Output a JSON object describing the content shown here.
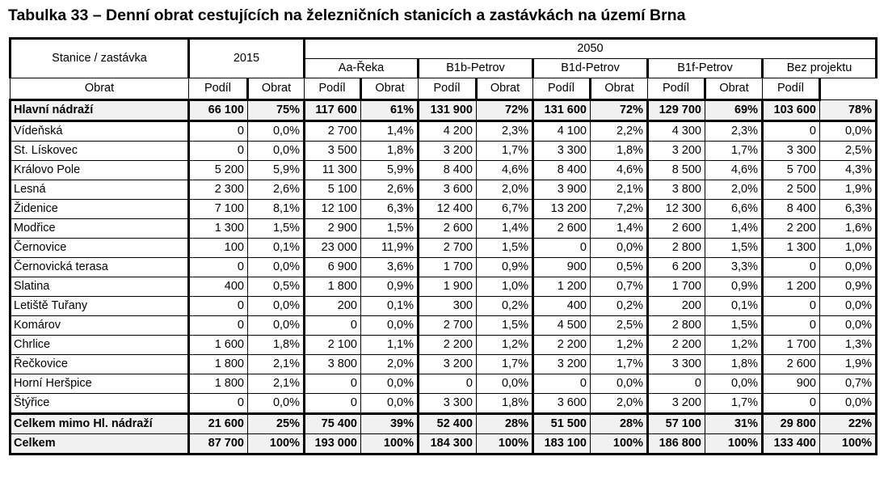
{
  "title": "Tabulka 33 – Denní obrat cestujících na železničních stanicích a zastávkách na území Brna",
  "header": {
    "station_col": "Stanice / zastávka",
    "year_2015": "2015",
    "year_2050": "2050",
    "variants": [
      "Aa-Řeka",
      "B1b-Petrov",
      "B1d-Petrov",
      "B1f-Petrov",
      "Bez projektu"
    ],
    "obrat": "Obrat",
    "podil": "Podíl"
  },
  "rows": [
    {
      "name": "Hlavní nádraží",
      "bold": true,
      "values": [
        "66 100",
        "75%",
        "117 600",
        "61%",
        "131 900",
        "72%",
        "131 600",
        "72%",
        "129 700",
        "69%",
        "103 600",
        "78%"
      ]
    },
    {
      "name": "Vídeňská",
      "values": [
        "0",
        "0,0%",
        "2 700",
        "1,4%",
        "4 200",
        "2,3%",
        "4 100",
        "2,2%",
        "4 300",
        "2,3%",
        "0",
        "0,0%"
      ]
    },
    {
      "name": "St. Lískovec",
      "values": [
        "0",
        "0,0%",
        "3 500",
        "1,8%",
        "3 200",
        "1,7%",
        "3 300",
        "1,8%",
        "3 200",
        "1,7%",
        "3 300",
        "2,5%"
      ]
    },
    {
      "name": "Královo Pole",
      "values": [
        "5 200",
        "5,9%",
        "11 300",
        "5,9%",
        "8 400",
        "4,6%",
        "8 400",
        "4,6%",
        "8 500",
        "4,6%",
        "5 700",
        "4,3%"
      ]
    },
    {
      "name": "Lesná",
      "values": [
        "2 300",
        "2,6%",
        "5 100",
        "2,6%",
        "3 600",
        "2,0%",
        "3 900",
        "2,1%",
        "3 800",
        "2,0%",
        "2 500",
        "1,9%"
      ]
    },
    {
      "name": "Židenice",
      "values": [
        "7 100",
        "8,1%",
        "12 100",
        "6,3%",
        "12 400",
        "6,7%",
        "13 200",
        "7,2%",
        "12 300",
        "6,6%",
        "8 400",
        "6,3%"
      ]
    },
    {
      "name": "Modřice",
      "values": [
        "1 300",
        "1,5%",
        "2 900",
        "1,5%",
        "2 600",
        "1,4%",
        "2 600",
        "1,4%",
        "2 600",
        "1,4%",
        "2 200",
        "1,6%"
      ]
    },
    {
      "name": "Černovice",
      "values": [
        "100",
        "0,1%",
        "23 000",
        "11,9%",
        "2 700",
        "1,5%",
        "0",
        "0,0%",
        "2 800",
        "1,5%",
        "1 300",
        "1,0%"
      ]
    },
    {
      "name": "Černovická terasa",
      "values": [
        "0",
        "0,0%",
        "6 900",
        "3,6%",
        "1 700",
        "0,9%",
        "900",
        "0,5%",
        "6 200",
        "3,3%",
        "0",
        "0,0%"
      ]
    },
    {
      "name": "Slatina",
      "values": [
        "400",
        "0,5%",
        "1 800",
        "0,9%",
        "1 900",
        "1,0%",
        "1 200",
        "0,7%",
        "1 700",
        "0,9%",
        "1 200",
        "0,9%"
      ]
    },
    {
      "name": "Letiště Tuřany",
      "values": [
        "0",
        "0,0%",
        "200",
        "0,1%",
        "300",
        "0,2%",
        "400",
        "0,2%",
        "200",
        "0,1%",
        "0",
        "0,0%"
      ]
    },
    {
      "name": "Komárov",
      "values": [
        "0",
        "0,0%",
        "0",
        "0,0%",
        "2 700",
        "1,5%",
        "4 500",
        "2,5%",
        "2 800",
        "1,5%",
        "0",
        "0,0%"
      ]
    },
    {
      "name": "Chrlice",
      "values": [
        "1 600",
        "1,8%",
        "2 100",
        "1,1%",
        "2 200",
        "1,2%",
        "2 200",
        "1,2%",
        "2 200",
        "1,2%",
        "1 700",
        "1,3%"
      ]
    },
    {
      "name": "Řečkovice",
      "values": [
        "1 800",
        "2,1%",
        "3 800",
        "2,0%",
        "3 200",
        "1,7%",
        "3 200",
        "1,7%",
        "3 300",
        "1,8%",
        "2 600",
        "1,9%"
      ]
    },
    {
      "name": "Horní Heršpice",
      "values": [
        "1 800",
        "2,1%",
        "0",
        "0,0%",
        "0",
        "0,0%",
        "0",
        "0,0%",
        "0",
        "0,0%",
        "900",
        "0,7%"
      ]
    },
    {
      "name": "Štýřice",
      "values": [
        "0",
        "0,0%",
        "0",
        "0,0%",
        "3 300",
        "1,8%",
        "3 600",
        "2,0%",
        "3 200",
        "1,7%",
        "0",
        "0,0%"
      ]
    },
    {
      "name": "Celkem mimo Hl. nádraží",
      "bold": true,
      "values": [
        "21 600",
        "25%",
        "75 400",
        "39%",
        "52 400",
        "28%",
        "51 500",
        "28%",
        "57 100",
        "31%",
        "29 800",
        "22%"
      ]
    },
    {
      "name": "Celkem",
      "bold": true,
      "values": [
        "87 700",
        "100%",
        "193 000",
        "100%",
        "184 300",
        "100%",
        "183 100",
        "100%",
        "186 800",
        "100%",
        "133 400",
        "100%"
      ]
    }
  ]
}
